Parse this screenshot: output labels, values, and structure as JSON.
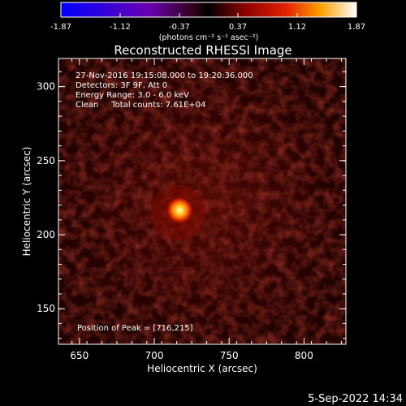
{
  "chart_data": {
    "type": "heatmap",
    "title": "Reconstructed RHESSI Image",
    "xlabel": "Heliocentric X (arcsec)",
    "ylabel": "Heliocentric Y (arcsec)",
    "xlim": [
      636,
      828
    ],
    "ylim": [
      126,
      319
    ],
    "xticks": [
      650,
      700,
      750,
      800
    ],
    "yticks": [
      150,
      200,
      250,
      300
    ],
    "peak": {
      "x": 716,
      "y": 215
    },
    "colorbar": {
      "ticks": [
        "-1.87",
        "-1.12",
        "-0.37",
        "0.37",
        "1.12",
        "1.87"
      ],
      "range": [
        -1.87,
        1.87
      ],
      "unit": "(photons cm⁻² s⁻¹ asec⁻²)"
    },
    "annotations": [
      "27-Nov-2016 19:15:08.000 to 19:20:36.000",
      "Detectors: 3F 9F, Att 0",
      "Energy Range: 3.0 - 6.0 keV",
      "Clean     Total counts: 7.61E+04"
    ],
    "peak_label": "Position of Peak = [716,215]"
  },
  "footer": {
    "date": "5-Sep-2022 14:34"
  },
  "colors": {
    "background": "#000000",
    "foreground": "#ffffff"
  }
}
